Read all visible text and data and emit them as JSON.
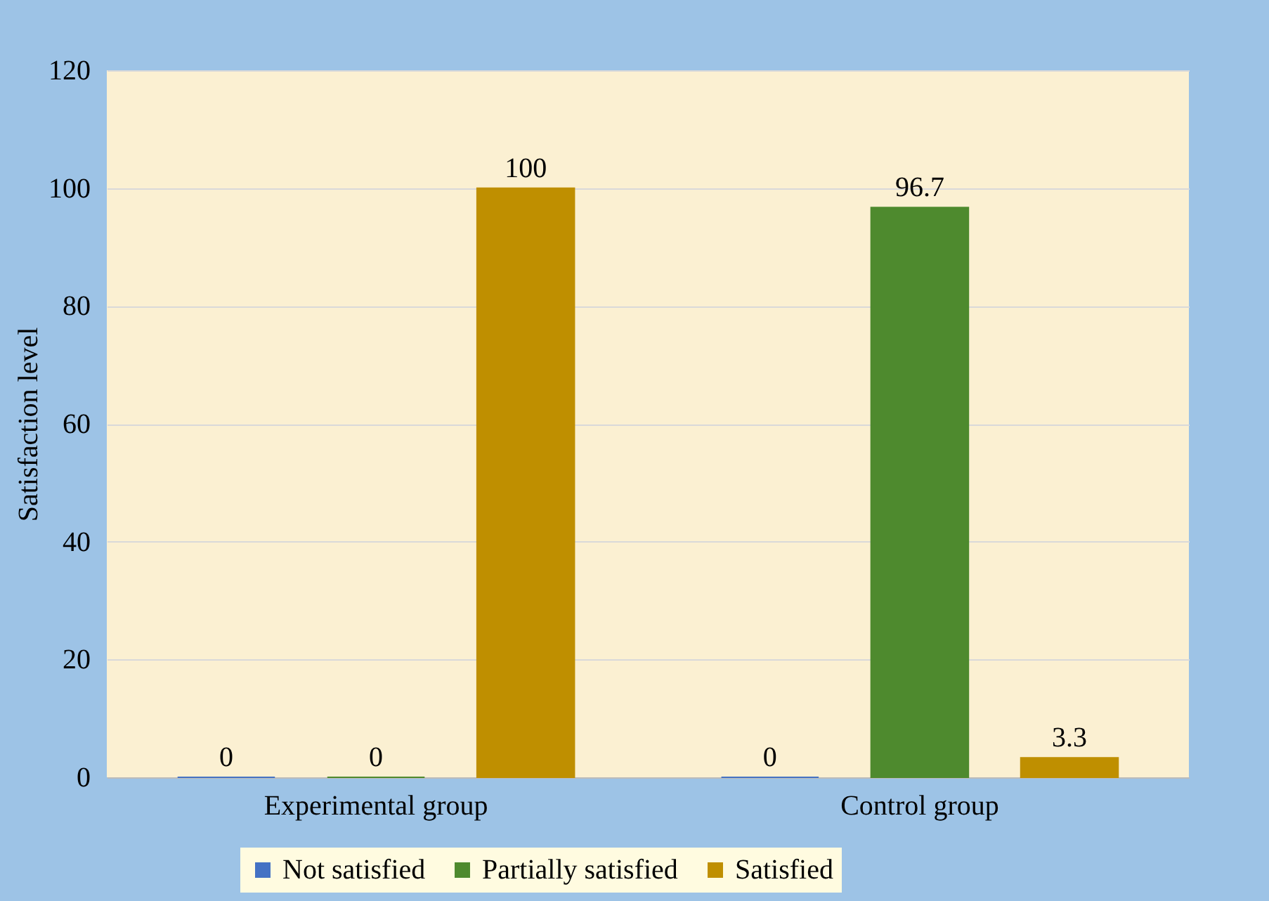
{
  "chart_data": {
    "type": "bar",
    "ylabel": "Satisfaction level",
    "categories": [
      "Experimental group",
      "Control group"
    ],
    "series": [
      {
        "name": "Not satisfied",
        "color": "#4472c4",
        "values": [
          0,
          0
        ]
      },
      {
        "name": "Partially satisfied",
        "color": "#4e8a2e",
        "values": [
          0,
          96.7
        ]
      },
      {
        "name": "Satisfied",
        "color": "#bf8f00",
        "values": [
          100,
          3.3
        ]
      }
    ],
    "ylim": [
      0,
      120
    ],
    "yticks": [
      0,
      20,
      40,
      60,
      80,
      100,
      120
    ],
    "grid": "y",
    "legend": "bottom",
    "data_labels": true
  }
}
